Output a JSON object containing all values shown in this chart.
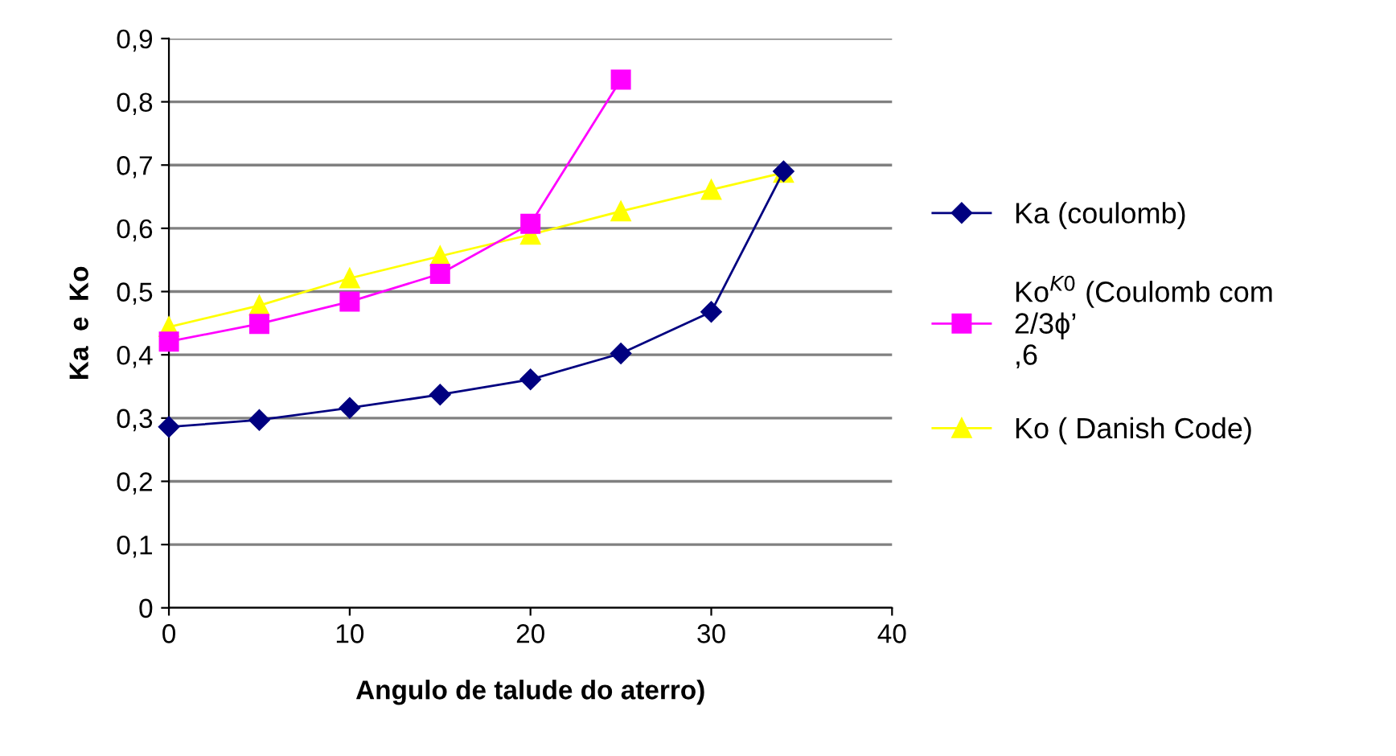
{
  "chart_data": {
    "type": "line",
    "xlabel": "Angulo de talude do aterro)",
    "ylabel": "Ka  e  Ko",
    "xlim": [
      0,
      40
    ],
    "xticks": [
      0,
      10,
      20,
      30,
      40
    ],
    "ylim": [
      0,
      0.9
    ],
    "yticks": [
      {
        "value": 0,
        "label": "0"
      },
      {
        "value": 0.1,
        "label": "0,1"
      },
      {
        "value": 0.2,
        "label": "0,2"
      },
      {
        "value": 0.3,
        "label": "0,3"
      },
      {
        "value": 0.4,
        "label": "0,4"
      },
      {
        "value": 0.5,
        "label": "0,5"
      },
      {
        "value": 0.6,
        "label": "0,6"
      },
      {
        "value": 0.7,
        "label": "0,7"
      },
      {
        "value": 0.8,
        "label": "0,8"
      },
      {
        "value": 0.9,
        "label": "0,9"
      }
    ],
    "grid": "y",
    "legend": "right",
    "series": [
      {
        "name": "Ka (coulomb)",
        "color": "#000080",
        "marker": "diamond",
        "x": [
          0,
          5,
          10,
          15,
          20,
          25,
          30,
          34
        ],
        "values": [
          0.286,
          0.297,
          0.316,
          0.337,
          0.361,
          0.402,
          0.468,
          0.69
        ]
      },
      {
        "name": "Ko$^{K0}$ (Coulomb com\n2/3ϕ’\n,6",
        "color": "#ff00ff",
        "marker": "square",
        "x": [
          0,
          5,
          10,
          15,
          20,
          25
        ],
        "values": [
          0.421,
          0.449,
          0.484,
          0.528,
          0.607,
          0.835
        ]
      },
      {
        "name": "Ko ( Danish Code)",
        "color": "#ffff00",
        "marker": "triangle",
        "x": [
          0,
          5,
          10,
          15,
          20,
          25,
          30,
          34
        ],
        "values": [
          0.444,
          0.478,
          0.521,
          0.556,
          0.59,
          0.627,
          0.661,
          0.688
        ]
      }
    ]
  }
}
